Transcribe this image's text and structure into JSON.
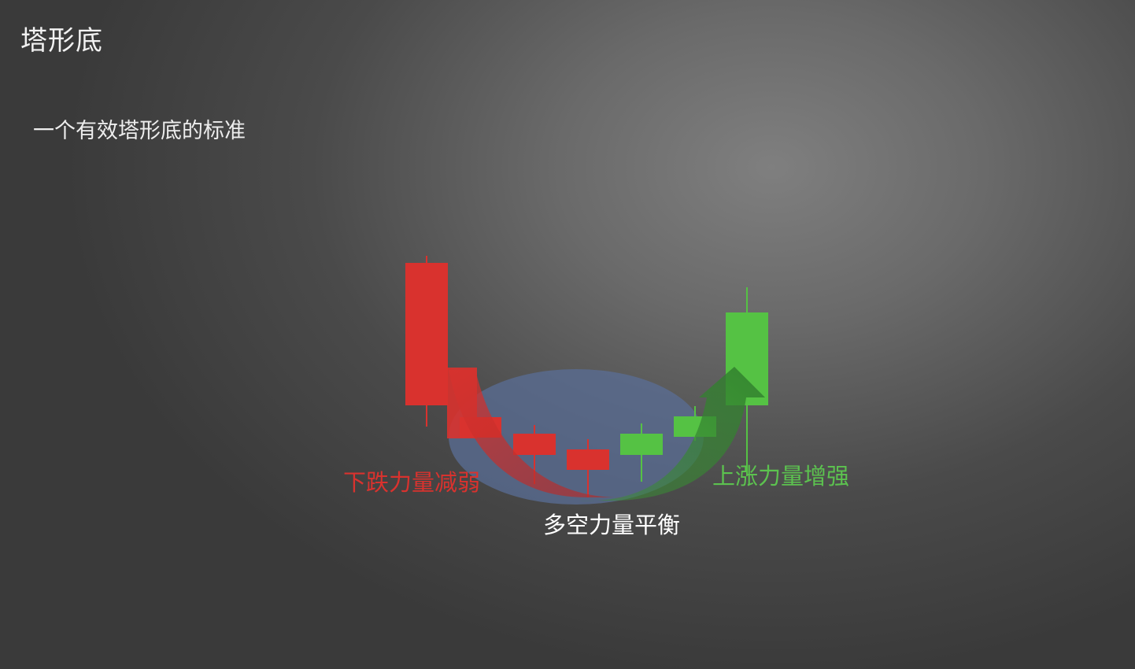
{
  "header": {
    "title": "塔形底",
    "subtitle": "一个有效塔形底的标准"
  },
  "labels": {
    "bear_weakening": "下跌力量减弱",
    "balance": "多空力量平衡",
    "bull_strengthening": "上涨力量增强"
  },
  "colors": {
    "bear": "#d9322e",
    "bull": "#55c244",
    "balance_zone": "#5a6e96",
    "text": "#f2f2f2"
  },
  "icons": {
    "down_arrow": "curved-arrow-down-right",
    "up_arrow": "curved-arrow-up"
  }
}
